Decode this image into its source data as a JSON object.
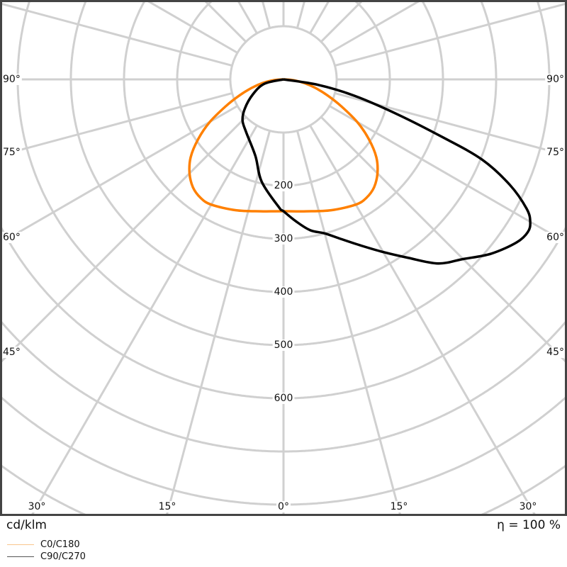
{
  "chart_data": {
    "type": "polar",
    "unit_label": "cd/klm",
    "efficiency_label": "η = 100 %",
    "radial_ticks": [
      100,
      200,
      300,
      400,
      500,
      600,
      700,
      800,
      900,
      1000
    ],
    "radial_tick_labels": [
      "200",
      "300",
      "400",
      "500",
      "600"
    ],
    "angle_tick_labels": {
      "bottom": [
        "30°",
        "15°",
        "0°",
        "15°",
        "30°"
      ],
      "left": [
        "90°",
        "75°",
        "60°",
        "45°"
      ],
      "right": [
        "90°",
        "75°",
        "60°",
        "45°"
      ]
    },
    "angular_grid_step_deg": 15,
    "grid": true,
    "legend_position": "bottom-left",
    "series": [
      {
        "name": "C0/C180",
        "color": "#ff8000",
        "legend_color": "#f9c58c",
        "symmetric": true,
        "gamma": [
          0,
          10,
          20,
          30,
          35,
          40,
          45,
          50,
          55,
          60,
          65,
          70,
          75,
          80,
          85,
          90
        ],
        "values": [
          248,
          252,
          262,
          272,
          272,
          265,
          250,
          228,
          196,
          160,
          120,
          88,
          62,
          40,
          20,
          0
        ]
      },
      {
        "name": "C90/C270",
        "color": "#000000",
        "legend_color": "#555555",
        "symmetric": false,
        "c90": {
          "gamma": [
            0,
            5,
            10,
            15,
            20,
            25,
            30,
            35,
            40,
            45,
            50,
            55,
            58,
            60,
            62,
            65,
            68,
            70,
            73,
            77,
            81,
            90
          ],
          "values": [
            248,
            268,
            288,
            300,
            320,
            345,
            375,
            410,
            452,
            478,
            510,
            535,
            542,
            536,
            518,
            470,
            403,
            320,
            223,
            137,
            67,
            0
          ]
        },
        "c270": {
          "gamma": [
            0,
            2,
            12,
            20,
            35,
            45,
            53,
            64,
            77,
            90
          ],
          "values": [
            248,
            241,
            197,
            154,
            122,
            109,
            91,
            64,
            37,
            0
          ]
        }
      }
    ]
  }
}
